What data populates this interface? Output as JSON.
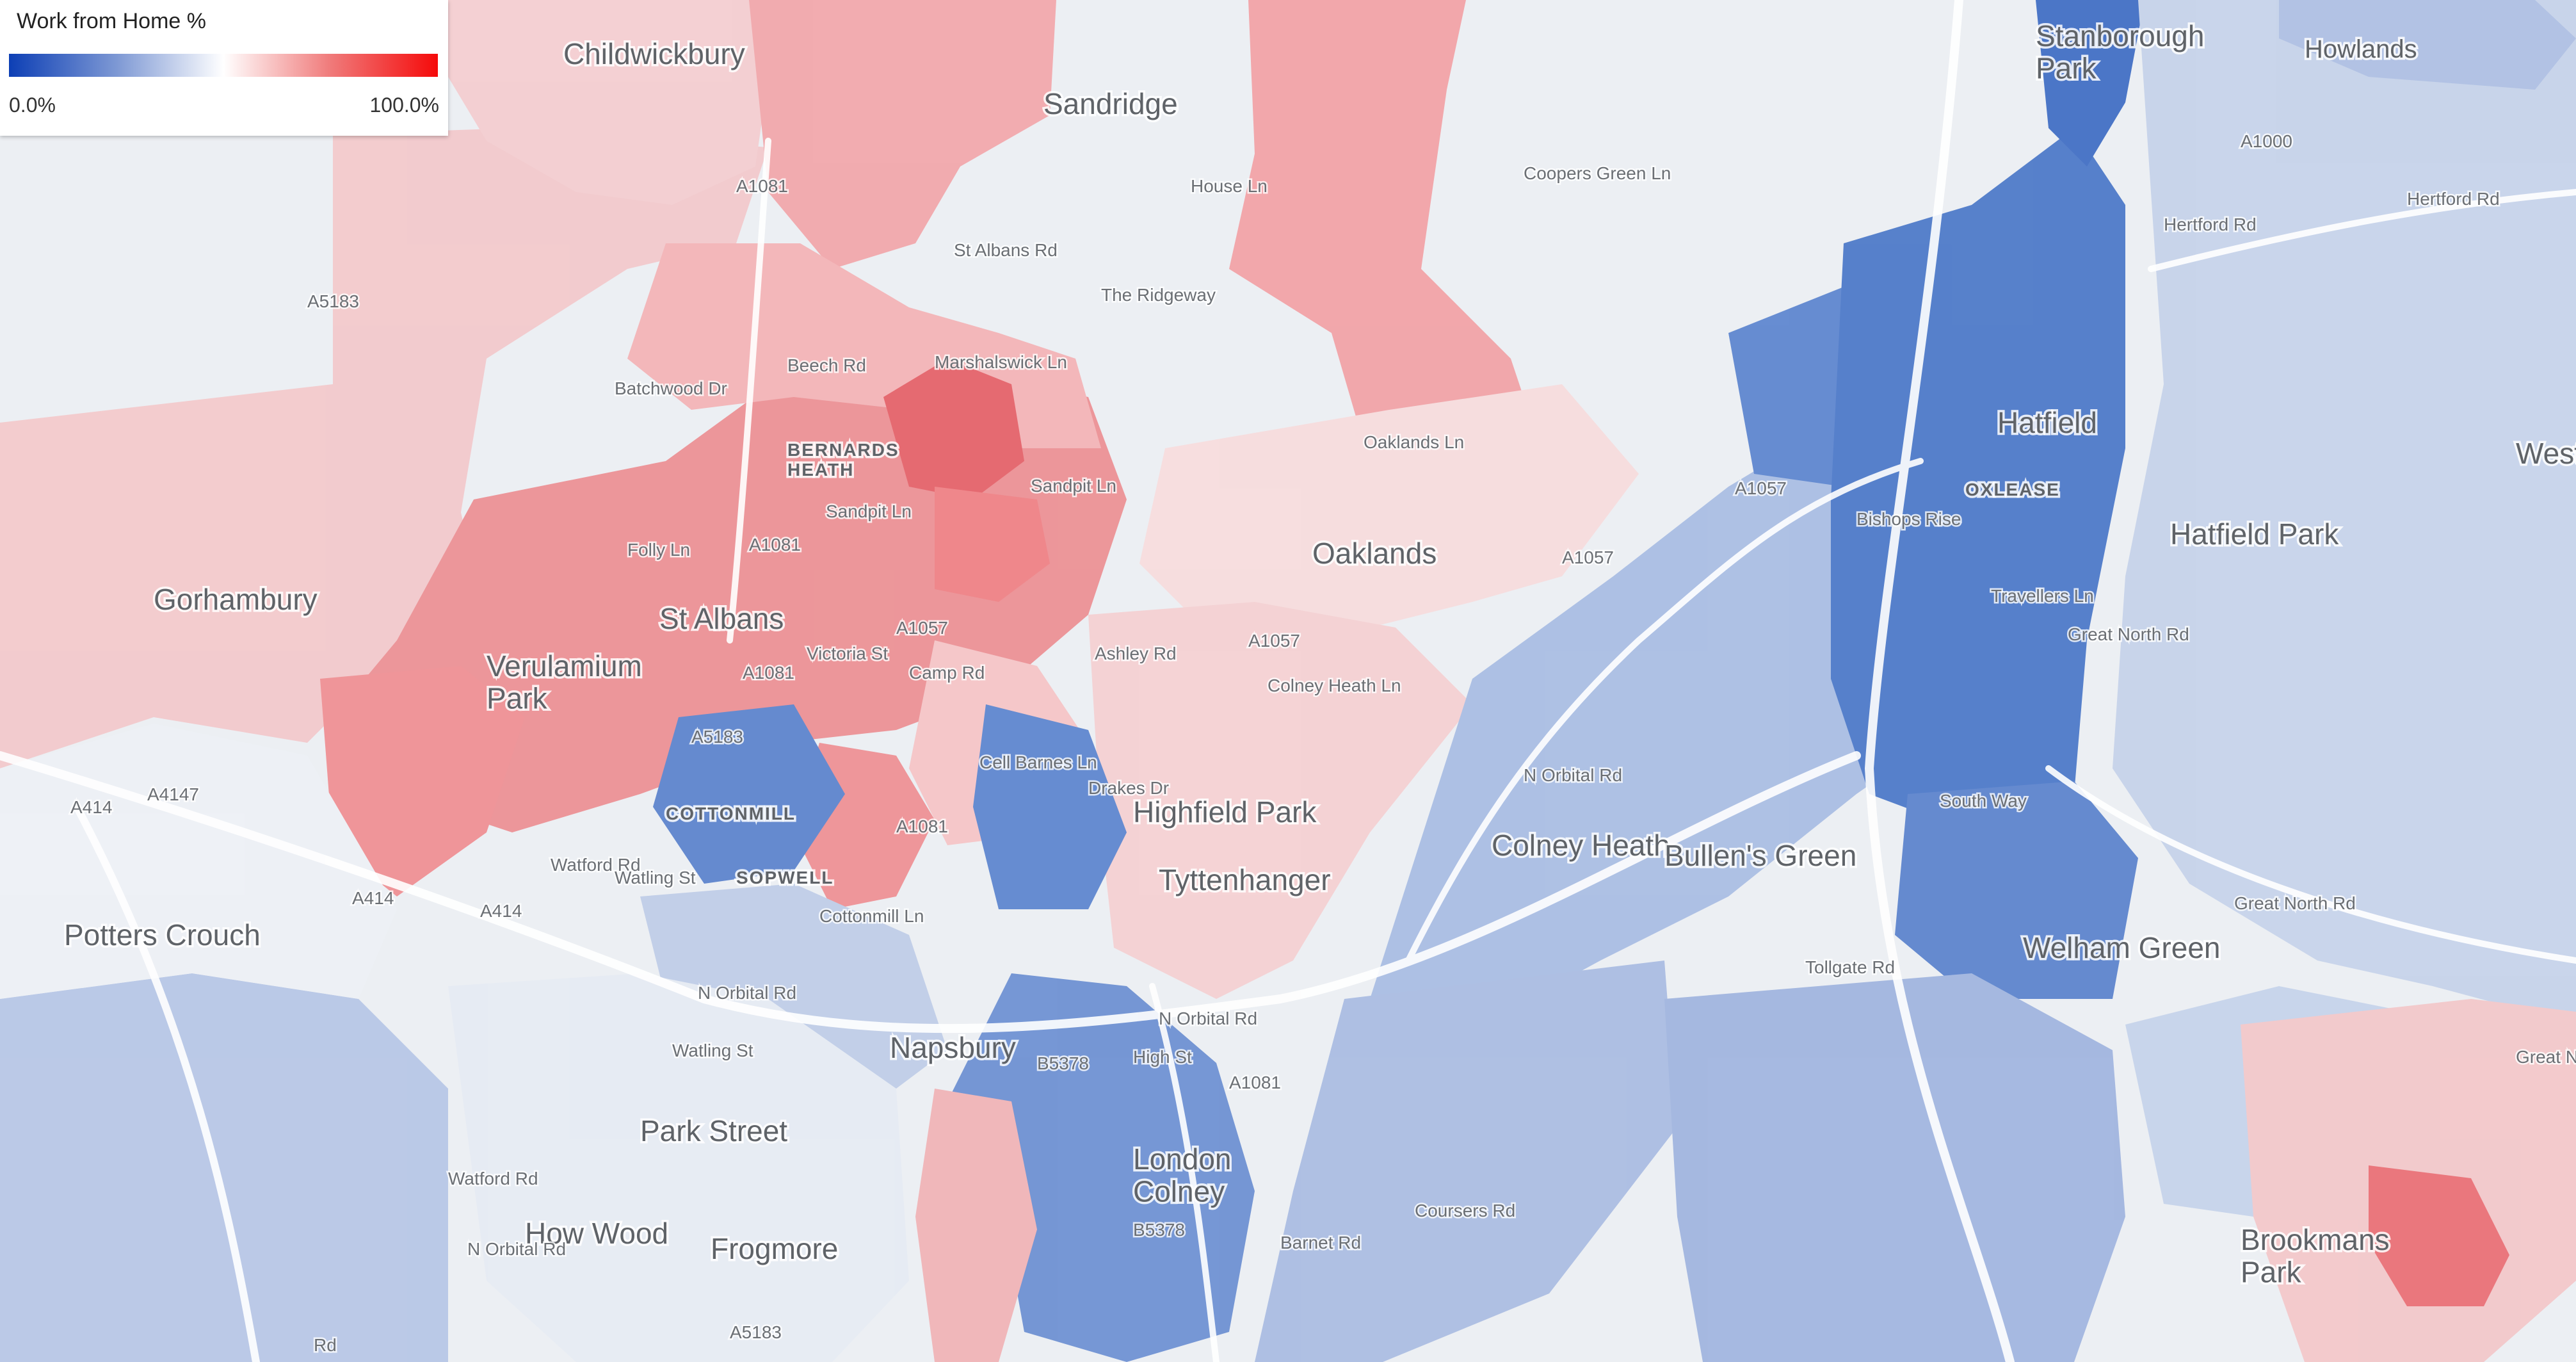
{
  "legend": {
    "title": "Work from Home %",
    "min_label": "0.0%",
    "max_label": "100.0%",
    "gradient_colors": [
      "#0d3fb5",
      "#7d98d4",
      "#ffffff",
      "#f07a7a",
      "#f50a0a"
    ]
  },
  "colors": {
    "background": "#eceff3",
    "road": "#ffffff",
    "water": "#c6dcef"
  },
  "places": [
    {
      "name": "Childwickbury",
      "size": "lg"
    },
    {
      "name": "Sandridge",
      "size": "lg"
    },
    {
      "name": "Stanborough Park",
      "size": "lg"
    },
    {
      "name": "Howlands",
      "size": "md"
    },
    {
      "name": "BERNARDS HEATH",
      "size": "sm"
    },
    {
      "name": "Gorhambury",
      "size": "lg"
    },
    {
      "name": "St Albans",
      "size": "lg"
    },
    {
      "name": "Verulamium Park",
      "size": "lg"
    },
    {
      "name": "Oaklands",
      "size": "lg"
    },
    {
      "name": "Hatfield",
      "size": "lg"
    },
    {
      "name": "OXLEASE",
      "size": "sm"
    },
    {
      "name": "Hatfield Park",
      "size": "lg"
    },
    {
      "name": "West",
      "size": "lg"
    },
    {
      "name": "COTTONMILL",
      "size": "sm"
    },
    {
      "name": "SOPWELL",
      "size": "sm"
    },
    {
      "name": "Highfield Park",
      "size": "lg"
    },
    {
      "name": "Tyttenhanger",
      "size": "lg"
    },
    {
      "name": "Colney Heath",
      "size": "lg"
    },
    {
      "name": "Bullen's Green",
      "size": "lg"
    },
    {
      "name": "Potters Crouch",
      "size": "lg"
    },
    {
      "name": "Welham Green",
      "size": "lg"
    },
    {
      "name": "Napsbury",
      "size": "lg"
    },
    {
      "name": "Park Street",
      "size": "lg"
    },
    {
      "name": "London Colney",
      "size": "lg"
    },
    {
      "name": "How Wood",
      "size": "lg"
    },
    {
      "name": "Frogmore",
      "size": "lg"
    },
    {
      "name": "Brookmans Park",
      "size": "lg"
    }
  ],
  "roads": [
    "A1081",
    "A5183",
    "St Albans Rd",
    "The Ridgeway",
    "House Ln",
    "Coopers Green Ln",
    "A1000",
    "Hertford Rd",
    "Hertford Rd",
    "Batchwood Dr",
    "Beech Rd",
    "Marshalswick Ln",
    "Sandpit Ln",
    "Sandpit Ln",
    "Folly Ln",
    "A1081",
    "A1057",
    "Victoria St",
    "Camp Rd",
    "A1081",
    "A5183",
    "A4147",
    "A414",
    "A414",
    "A414",
    "Ashley Rd",
    "Cell Barnes Ln",
    "Drakes Dr",
    "Colney Heath Ln",
    "A1057",
    "Oaklands Ln",
    "A1057",
    "A1057",
    "Bishops Rise",
    "Travellers Ln",
    "Great North Rd",
    "South Way",
    "N Orbital Rd",
    "Great North Rd",
    "Tollgate Rd",
    "Great North Rd",
    "Watford Rd",
    "Watling St",
    "Cottonmill Ln",
    "A1081",
    "N Orbital Rd",
    "N Orbital Rd",
    "Watling St",
    "B5378",
    "High St",
    "A1081",
    "B5378",
    "Barnet Rd",
    "Coursers Rd",
    "Watford Rd",
    "N Orbital Rd",
    "A5183",
    "Rd"
  ]
}
